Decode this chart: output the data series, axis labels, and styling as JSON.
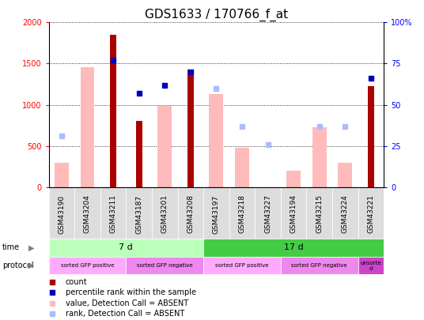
{
  "title": "GDS1633 / 170766_f_at",
  "samples": [
    "GSM43190",
    "GSM43204",
    "GSM43211",
    "GSM43187",
    "GSM43201",
    "GSM43208",
    "GSM43197",
    "GSM43218",
    "GSM43227",
    "GSM43194",
    "GSM43215",
    "GSM43224",
    "GSM43221"
  ],
  "count_values": [
    null,
    null,
    1850,
    800,
    null,
    1430,
    null,
    null,
    null,
    null,
    null,
    null,
    1230
  ],
  "pct_rank_values": [
    null,
    null,
    77,
    57,
    62,
    70,
    null,
    null,
    null,
    null,
    null,
    null,
    66
  ],
  "absent_value": [
    290,
    1460,
    null,
    null,
    990,
    null,
    1130,
    480,
    null,
    195,
    730,
    295,
    null
  ],
  "absent_rank": [
    31,
    null,
    null,
    null,
    null,
    null,
    60,
    37,
    26,
    null,
    37,
    37,
    null
  ],
  "time_groups": [
    {
      "label": "7 d",
      "start": 0,
      "end": 6,
      "color": "#bbffbb"
    },
    {
      "label": "17 d",
      "start": 6,
      "end": 13,
      "color": "#44cc44"
    }
  ],
  "protocol_groups": [
    {
      "label": "sorted GFP positive",
      "start": 0,
      "end": 3,
      "color": "#ffaaff"
    },
    {
      "label": "sorted GFP negative",
      "start": 3,
      "end": 6,
      "color": "#ee88ee"
    },
    {
      "label": "sorted GFP positive",
      "start": 6,
      "end": 9,
      "color": "#ffaaff"
    },
    {
      "label": "sorted GFP negative",
      "start": 9,
      "end": 12,
      "color": "#ee88ee"
    },
    {
      "label": "unsorte\nd",
      "start": 12,
      "end": 13,
      "color": "#cc44cc"
    }
  ],
  "ylim_left": [
    0,
    2000
  ],
  "ylim_right": [
    0,
    100
  ],
  "yticks_left": [
    0,
    500,
    1000,
    1500,
    2000
  ],
  "yticks_right": [
    0,
    25,
    50,
    75,
    100
  ],
  "bar_color_dark": "#aa0000",
  "bar_color_light": "#ffbbbb",
  "dot_color_dark": "#0000bb",
  "dot_color_light": "#aabbff",
  "bg_color": "#ffffff",
  "sample_bg_color": "#dddddd",
  "title_fontsize": 11,
  "tick_fontsize": 7,
  "label_fontsize": 7,
  "sample_fontsize": 6.5
}
